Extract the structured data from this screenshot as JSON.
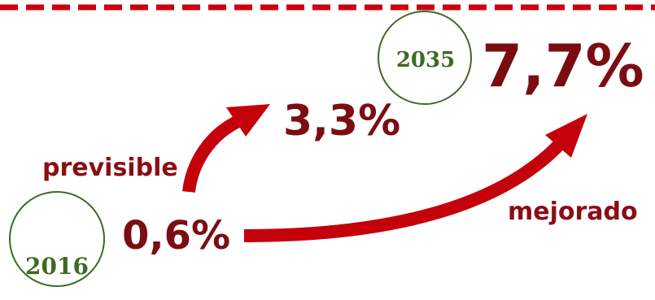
{
  "colors": {
    "arrow": "#c4000b",
    "dark_red": "#7b0d12",
    "green": "#3d6b22",
    "dash": "#c8000f"
  },
  "start": {
    "year": "2016",
    "value": "0,6%"
  },
  "end": {
    "year": "2035",
    "value": "7,7%"
  },
  "paths": [
    {
      "label": "previsible",
      "value": "3,3%"
    },
    {
      "label": "mejorado",
      "value": "7,7%"
    }
  ]
}
